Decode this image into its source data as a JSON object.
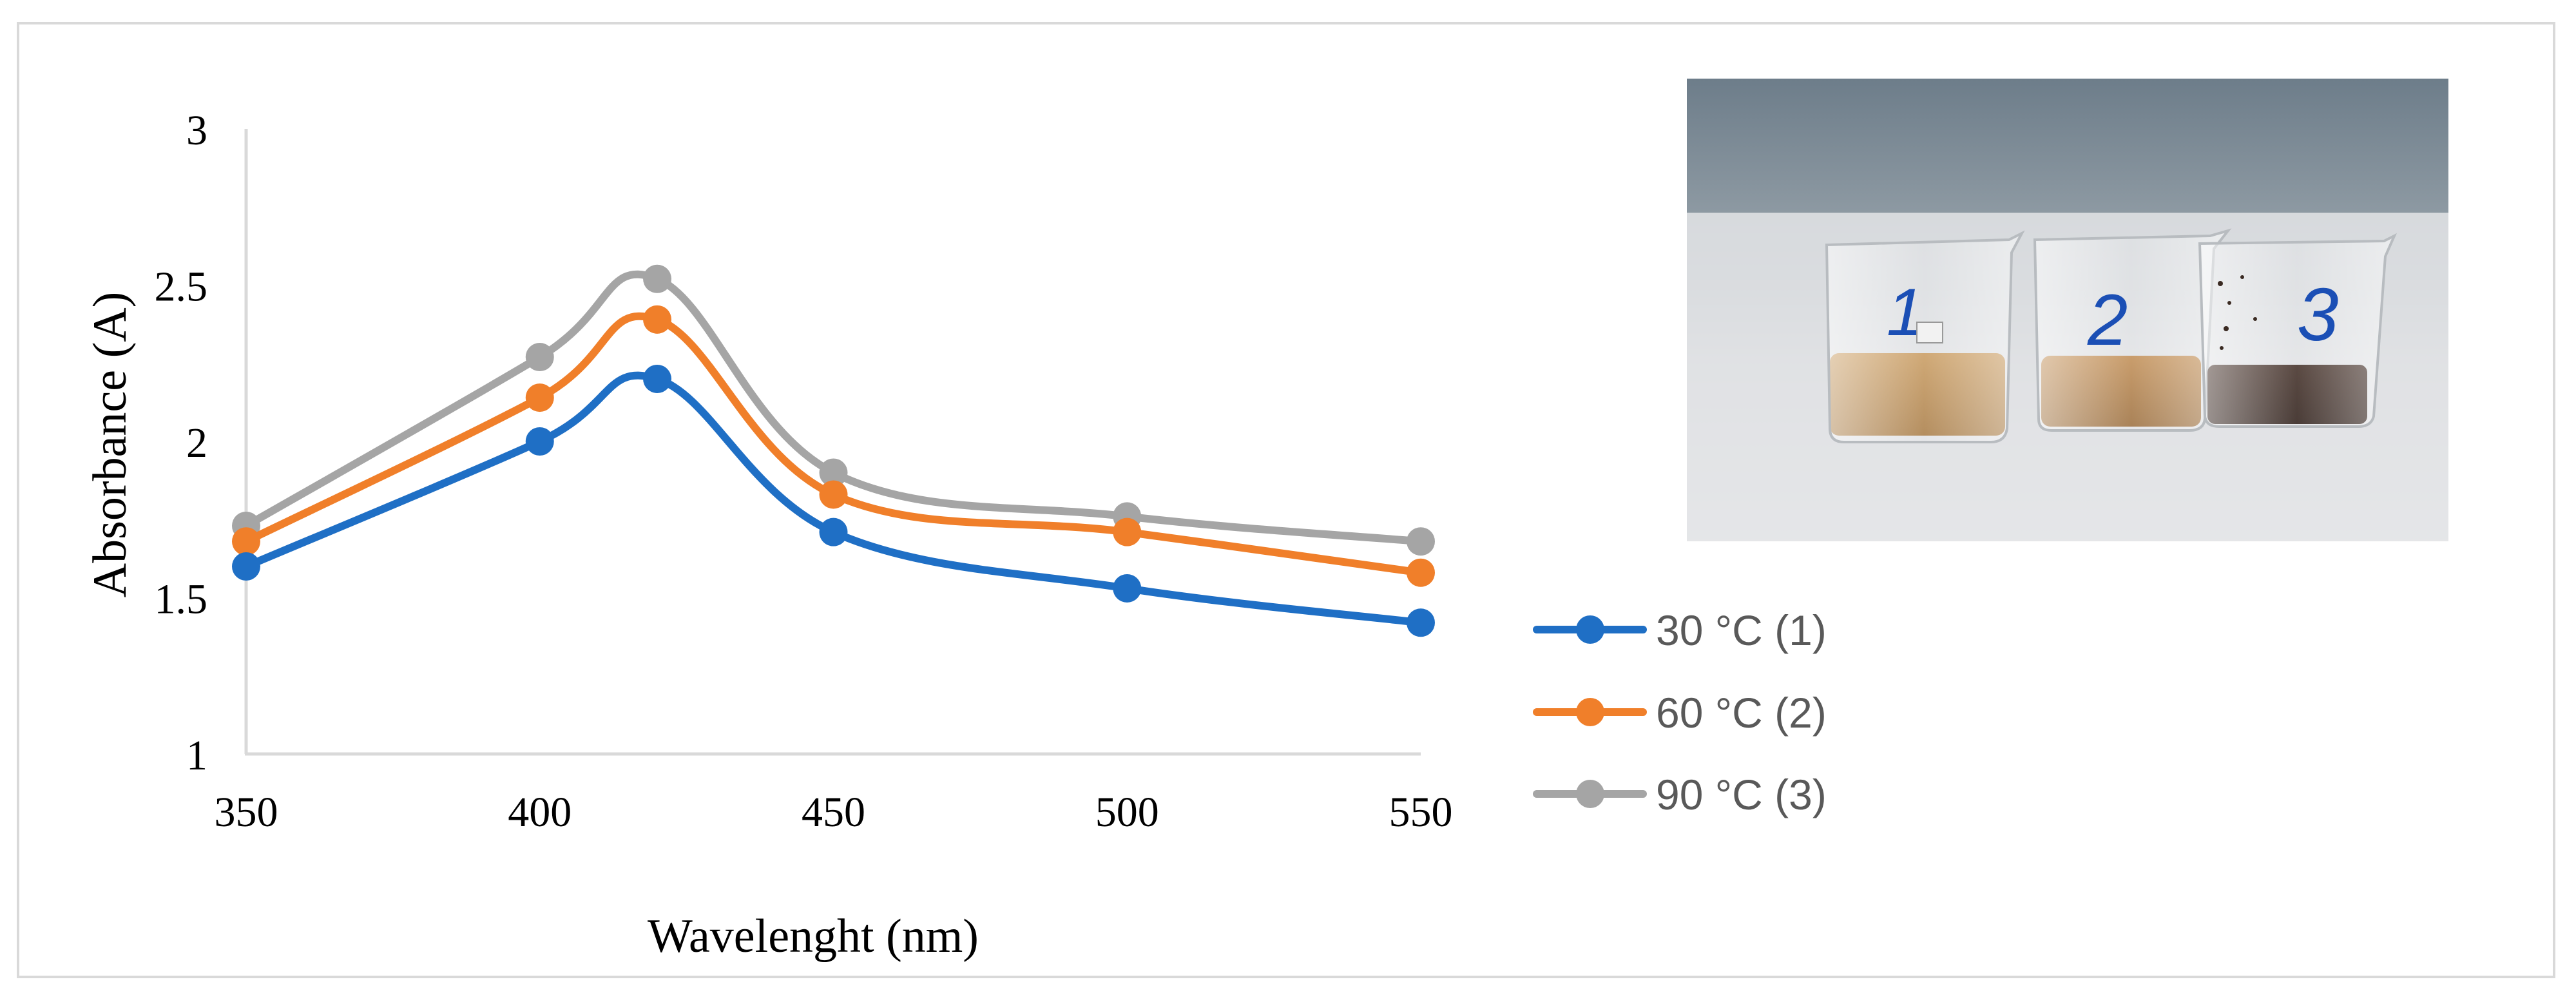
{
  "chart_data": {
    "type": "line",
    "title": "",
    "xlabel": "Wavelenght (nm)",
    "ylabel": "Absorbance (A)",
    "xlim": [
      350,
      550
    ],
    "ylim": [
      1,
      3
    ],
    "x_ticks": [
      350,
      400,
      450,
      500,
      550
    ],
    "y_ticks": [
      1,
      1.5,
      2,
      2.5,
      3
    ],
    "x_tick_labels": [
      "350",
      "400",
      "450",
      "500",
      "550"
    ],
    "y_tick_labels": [
      "1",
      "1.5",
      "2",
      "2.5",
      "3"
    ],
    "grid": false,
    "legend_position": "right",
    "series": [
      {
        "name": "30 °C (1)",
        "color": "#1f6fc5",
        "x": [
          350,
          400,
          420,
          450,
          500,
          550
        ],
        "y": [
          1.6,
          2.0,
          2.2,
          1.71,
          1.53,
          1.42
        ]
      },
      {
        "name": "60 °C (2)",
        "color": "#f07f2a",
        "x": [
          350,
          400,
          420,
          450,
          500,
          550
        ],
        "y": [
          1.68,
          2.14,
          2.39,
          1.83,
          1.71,
          1.58
        ]
      },
      {
        "name": "90 °C (3)",
        "color": "#a5a5a5",
        "x": [
          350,
          400,
          420,
          450,
          500,
          550
        ],
        "y": [
          1.73,
          2.27,
          2.52,
          1.9,
          1.76,
          1.68
        ]
      }
    ]
  },
  "photo": {
    "beaker_labels": [
      "1",
      "2",
      "3"
    ]
  }
}
